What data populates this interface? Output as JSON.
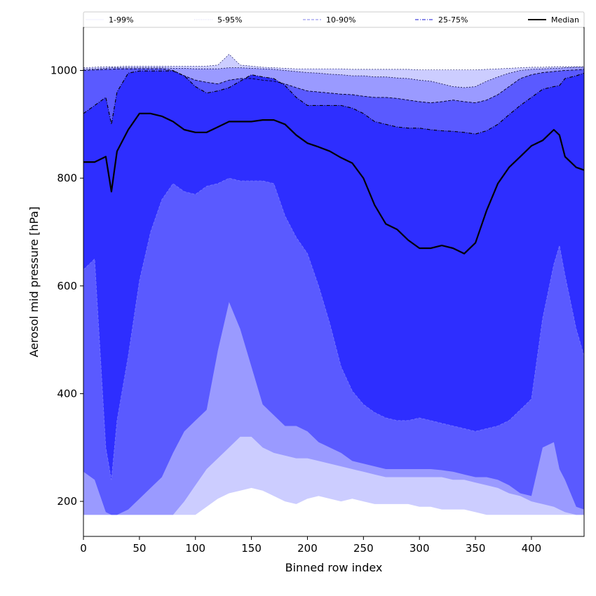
{
  "chart_data": {
    "type": "area",
    "xlabel": "Binned row index",
    "ylabel": "Aerosol mid pressure [hPa]",
    "xlim": [
      0,
      447
    ],
    "ylim": [
      135,
      1080
    ],
    "grid": false,
    "x_ticks": [
      0,
      50,
      100,
      150,
      200,
      250,
      300,
      350,
      400
    ],
    "y_ticks": [
      200,
      400,
      600,
      800,
      1000
    ],
    "x_tick_labels": [
      "0",
      "50",
      "100",
      "150",
      "200",
      "250",
      "300",
      "350",
      "400"
    ],
    "y_tick_labels": [
      "200",
      "400",
      "600",
      "800",
      "1000"
    ],
    "legend_position": "top",
    "legend": [
      {
        "label": "1-99%",
        "color": "#e0e0ff",
        "style": "solid"
      },
      {
        "label": "5-95%",
        "color": "#b0b0f0",
        "style": "dotted"
      },
      {
        "label": "10-90%",
        "color": "#8080ee",
        "style": "dashed"
      },
      {
        "label": "25-75%",
        "color": "#4444dd",
        "style": "dashdot"
      },
      {
        "label": "Median",
        "color": "#000000",
        "style": "solid"
      }
    ],
    "colors": {
      "band_1_99": "#cccdff",
      "band_5_95": "#9a9aff",
      "band_10_90": "#5a5aff",
      "band_25_75": "#2e2eff",
      "median": "#000000"
    },
    "x": [
      0,
      10,
      20,
      25,
      30,
      40,
      50,
      60,
      70,
      80,
      90,
      100,
      110,
      120,
      130,
      140,
      150,
      160,
      170,
      180,
      190,
      200,
      210,
      220,
      230,
      240,
      250,
      260,
      270,
      280,
      290,
      300,
      310,
      320,
      330,
      340,
      350,
      360,
      370,
      380,
      390,
      400,
      410,
      420,
      425,
      430,
      440,
      447
    ],
    "bands": [
      {
        "name": "1-99%",
        "low": [
          175,
          175,
          175,
          175,
          175,
          175,
          175,
          175,
          175,
          175,
          175,
          175,
          190,
          205,
          215,
          220,
          225,
          220,
          210,
          200,
          195,
          205,
          210,
          205,
          200,
          205,
          200,
          195,
          195,
          195,
          195,
          190,
          190,
          185,
          185,
          185,
          180,
          175,
          175,
          175,
          175,
          175,
          175,
          175,
          175,
          175,
          175,
          175
        ],
        "high": [
          1005,
          1006,
          1007,
          1007,
          1007,
          1008,
          1008,
          1008,
          1008,
          1008,
          1008,
          1008,
          1008,
          1010,
          1030,
          1010,
          1008,
          1006,
          1005,
          1004,
          1003,
          1003,
          1003,
          1003,
          1003,
          1002,
          1002,
          1002,
          1002,
          1002,
          1002,
          1001,
          1001,
          1001,
          1001,
          1001,
          1001,
          1002,
          1003,
          1004,
          1005,
          1006,
          1006,
          1007,
          1007,
          1007,
          1007,
          1007
        ]
      },
      {
        "name": "5-95%",
        "low": [
          175,
          175,
          175,
          175,
          175,
          175,
          175,
          175,
          175,
          175,
          200,
          230,
          260,
          280,
          300,
          320,
          320,
          300,
          290,
          285,
          280,
          280,
          275,
          270,
          265,
          260,
          255,
          250,
          245,
          245,
          245,
          245,
          245,
          245,
          240,
          240,
          235,
          230,
          225,
          215,
          210,
          200,
          195,
          190,
          185,
          180,
          175,
          175
        ],
        "high": [
          1002,
          1003,
          1004,
          1005,
          1005,
          1005,
          1005,
          1005,
          1005,
          1004,
          1004,
          1003,
          1003,
          1003,
          1005,
          1005,
          1004,
          1003,
          1002,
          1000,
          998,
          996,
          995,
          993,
          992,
          990,
          990,
          988,
          988,
          986,
          985,
          982,
          980,
          975,
          970,
          968,
          970,
          980,
          988,
          995,
          1000,
          1002,
          1003,
          1004,
          1004,
          1005,
          1006,
          1006
        ]
      },
      {
        "name": "10-90%",
        "low": [
          255,
          240,
          180,
          175,
          175,
          185,
          205,
          225,
          245,
          290,
          330,
          350,
          370,
          480,
          570,
          520,
          450,
          380,
          360,
          340,
          340,
          330,
          310,
          300,
          290,
          275,
          270,
          265,
          260,
          260,
          260,
          260,
          260,
          258,
          255,
          250,
          245,
          245,
          240,
          230,
          215,
          210,
          300,
          310,
          260,
          240,
          190,
          185
        ],
        "high": [
          1000,
          1001,
          1002,
          1002,
          1003,
          1003,
          1003,
          1003,
          1003,
          1000,
          990,
          982,
          978,
          975,
          982,
          985,
          985,
          982,
          980,
          975,
          968,
          962,
          960,
          958,
          956,
          955,
          952,
          950,
          950,
          948,
          945,
          942,
          940,
          942,
          945,
          942,
          940,
          945,
          955,
          970,
          985,
          992,
          996,
          998,
          999,
          1000,
          1001,
          1002
        ]
      },
      {
        "name": "25-75%",
        "low": [
          630,
          650,
          300,
          240,
          350,
          470,
          610,
          700,
          760,
          790,
          775,
          770,
          785,
          790,
          800,
          795,
          795,
          795,
          790,
          730,
          690,
          660,
          600,
          530,
          450,
          405,
          380,
          365,
          355,
          350,
          350,
          355,
          350,
          345,
          340,
          335,
          330,
          335,
          340,
          350,
          370,
          390,
          540,
          640,
          675,
          620,
          520,
          470
        ]
      }
    ],
    "band_25_75_high": [
      920,
      935,
      950,
      900,
      960,
      995,
      999,
      999,
      999,
      999,
      990,
      970,
      958,
      962,
      968,
      980,
      992,
      988,
      985,
      972,
      950,
      935,
      935,
      935,
      935,
      930,
      920,
      905,
      900,
      895,
      893,
      893,
      890,
      888,
      887,
      885,
      882,
      888,
      900,
      918,
      935,
      950,
      965,
      970,
      972,
      985,
      990,
      995
    ],
    "median": [
      830,
      830,
      840,
      775,
      850,
      890,
      920,
      920,
      915,
      905,
      890,
      885,
      885,
      895,
      905,
      905,
      905,
      908,
      908,
      900,
      880,
      865,
      858,
      850,
      838,
      828,
      800,
      750,
      715,
      705,
      685,
      670,
      670,
      675,
      670,
      660,
      680,
      740,
      790,
      820,
      840,
      860,
      870,
      890,
      880,
      840,
      820,
      815
    ]
  }
}
